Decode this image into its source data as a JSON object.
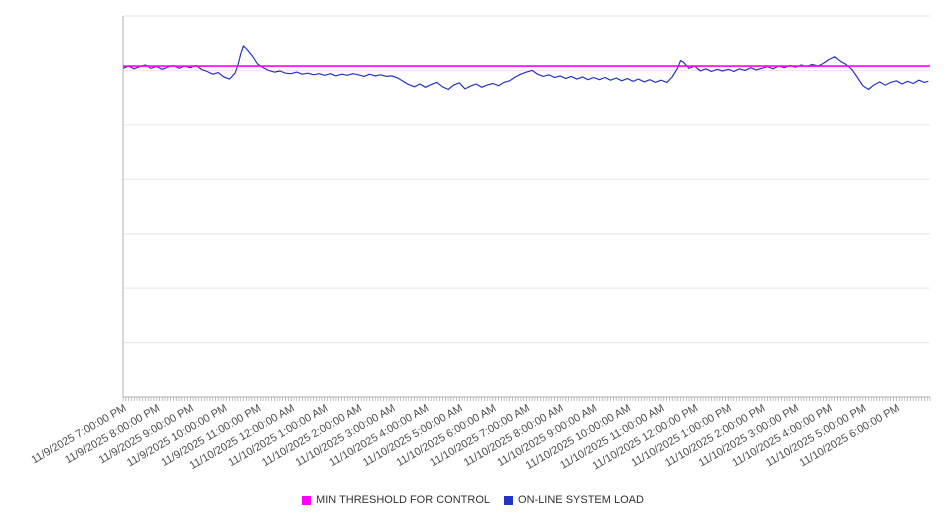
{
  "chart_data": {
    "type": "line",
    "title": "",
    "xlabel": "",
    "ylabel": "",
    "ylim": [
      0,
      7
    ],
    "x_range_hours": [
      0,
      24
    ],
    "grid": true,
    "y_gridlines": [
      1,
      2,
      3,
      4,
      5,
      6,
      7
    ],
    "legend_position": "bottom",
    "style": {
      "background": "#ffffff",
      "grid_color": "#e6e6e6",
      "axis_color": "#b0b0b0",
      "tick_color": "#999999",
      "label_color": "#4d4d4d"
    },
    "x_tick_labels": [
      "11/9/2025 7:00:00 PM",
      "11/9/2025 8:00:00 PM",
      "11/9/2025 9:00:00 PM",
      "11/9/2025 10:00:00 PM",
      "11/9/2025 11:00:00 PM",
      "11/10/2025 12:00:00 AM",
      "11/10/2025 1:00:00 AM",
      "11/10/2025 2:00:00 AM",
      "11/10/2025 3:00:00 AM",
      "11/10/2025 4:00:00 AM",
      "11/10/2025 5:00:00 AM",
      "11/10/2025 6:00:00 AM",
      "11/10/2025 7:00:00 AM",
      "11/10/2025 8:00:00 AM",
      "11/10/2025 9:00:00 AM",
      "11/10/2025 10:00:00 AM",
      "11/10/2025 11:00:00 AM",
      "11/10/2025 12:00:00 PM",
      "11/10/2025 1:00:00 PM",
      "11/10/2025 2:00:00 PM",
      "11/10/2025 3:00:00 PM",
      "11/10/2025 4:00:00 PM",
      "11/10/2025 5:00:00 PM",
      "11/10/2025 6:00:00 PM"
    ],
    "series": [
      {
        "name": "MIN THRESHOLD FOR CONTROL",
        "color": "#ff00ff",
        "kind": "constant-threshold",
        "value": 6.08
      },
      {
        "name": "ON-LINE SYSTEM LOAD",
        "color": "#2235c5",
        "kind": "line",
        "x_unit": "hours from 11/9/2025 7:00:00 PM",
        "points": [
          [
            0,
            6.04
          ],
          [
            0.17,
            6.08
          ],
          [
            0.33,
            6.03
          ],
          [
            0.5,
            6.07
          ],
          [
            0.67,
            6.1
          ],
          [
            0.83,
            6.04
          ],
          [
            1,
            6.07
          ],
          [
            1.17,
            6.02
          ],
          [
            1.33,
            6.06
          ],
          [
            1.5,
            6.09
          ],
          [
            1.67,
            6.04
          ],
          [
            1.83,
            6.08
          ],
          [
            2,
            6.05
          ],
          [
            2.17,
            6.09
          ],
          [
            2.33,
            6.02
          ],
          [
            2.5,
            5.98
          ],
          [
            2.67,
            5.93
          ],
          [
            2.83,
            5.96
          ],
          [
            3,
            5.88
          ],
          [
            3.17,
            5.84
          ],
          [
            3.33,
            5.95
          ],
          [
            3.42,
            6.1
          ],
          [
            3.5,
            6.3
          ],
          [
            3.58,
            6.45
          ],
          [
            3.67,
            6.4
          ],
          [
            3.83,
            6.28
          ],
          [
            4,
            6.12
          ],
          [
            4.17,
            6.05
          ],
          [
            4.33,
            6.0
          ],
          [
            4.5,
            5.97
          ],
          [
            4.67,
            5.99
          ],
          [
            4.83,
            5.95
          ],
          [
            5,
            5.94
          ],
          [
            5.17,
            5.97
          ],
          [
            5.33,
            5.93
          ],
          [
            5.5,
            5.95
          ],
          [
            5.67,
            5.92
          ],
          [
            5.83,
            5.94
          ],
          [
            6,
            5.91
          ],
          [
            6.17,
            5.94
          ],
          [
            6.33,
            5.9
          ],
          [
            6.5,
            5.93
          ],
          [
            6.67,
            5.91
          ],
          [
            6.83,
            5.94
          ],
          [
            7,
            5.92
          ],
          [
            7.17,
            5.89
          ],
          [
            7.33,
            5.93
          ],
          [
            7.5,
            5.9
          ],
          [
            7.67,
            5.92
          ],
          [
            7.83,
            5.89
          ],
          [
            8,
            5.9
          ],
          [
            8.17,
            5.86
          ],
          [
            8.33,
            5.8
          ],
          [
            8.5,
            5.74
          ],
          [
            8.67,
            5.7
          ],
          [
            8.83,
            5.75
          ],
          [
            9,
            5.69
          ],
          [
            9.17,
            5.74
          ],
          [
            9.33,
            5.78
          ],
          [
            9.5,
            5.7
          ],
          [
            9.67,
            5.65
          ],
          [
            9.83,
            5.73
          ],
          [
            10,
            5.77
          ],
          [
            10.17,
            5.66
          ],
          [
            10.33,
            5.71
          ],
          [
            10.5,
            5.75
          ],
          [
            10.67,
            5.69
          ],
          [
            10.83,
            5.73
          ],
          [
            11,
            5.76
          ],
          [
            11.17,
            5.72
          ],
          [
            11.33,
            5.78
          ],
          [
            11.5,
            5.81
          ],
          [
            11.67,
            5.88
          ],
          [
            11.83,
            5.93
          ],
          [
            12,
            5.97
          ],
          [
            12.17,
            6.0
          ],
          [
            12.33,
            5.93
          ],
          [
            12.5,
            5.89
          ],
          [
            12.67,
            5.92
          ],
          [
            12.83,
            5.87
          ],
          [
            13,
            5.9
          ],
          [
            13.17,
            5.85
          ],
          [
            13.33,
            5.89
          ],
          [
            13.5,
            5.84
          ],
          [
            13.67,
            5.88
          ],
          [
            13.83,
            5.83
          ],
          [
            14,
            5.87
          ],
          [
            14.17,
            5.83
          ],
          [
            14.33,
            5.87
          ],
          [
            14.5,
            5.82
          ],
          [
            14.67,
            5.86
          ],
          [
            14.83,
            5.81
          ],
          [
            15,
            5.85
          ],
          [
            15.17,
            5.8
          ],
          [
            15.33,
            5.84
          ],
          [
            15.5,
            5.79
          ],
          [
            15.67,
            5.83
          ],
          [
            15.83,
            5.78
          ],
          [
            16,
            5.82
          ],
          [
            16.17,
            5.78
          ],
          [
            16.33,
            5.88
          ],
          [
            16.5,
            6.05
          ],
          [
            16.58,
            6.18
          ],
          [
            16.67,
            6.15
          ],
          [
            16.83,
            6.04
          ],
          [
            17,
            6.08
          ],
          [
            17.17,
            5.99
          ],
          [
            17.33,
            6.03
          ],
          [
            17.5,
            5.98
          ],
          [
            17.67,
            6.02
          ],
          [
            17.83,
            5.99
          ],
          [
            18,
            6.02
          ],
          [
            18.17,
            5.98
          ],
          [
            18.33,
            6.03
          ],
          [
            18.5,
            6.0
          ],
          [
            18.67,
            6.05
          ],
          [
            18.83,
            6.01
          ],
          [
            19,
            6.04
          ],
          [
            19.17,
            6.07
          ],
          [
            19.33,
            6.03
          ],
          [
            19.5,
            6.08
          ],
          [
            19.67,
            6.05
          ],
          [
            19.83,
            6.09
          ],
          [
            20,
            6.06
          ],
          [
            20.17,
            6.1
          ],
          [
            20.33,
            6.07
          ],
          [
            20.5,
            6.11
          ],
          [
            20.67,
            6.08
          ],
          [
            20.83,
            6.13
          ],
          [
            21,
            6.2
          ],
          [
            21.17,
            6.25
          ],
          [
            21.33,
            6.17
          ],
          [
            21.5,
            6.11
          ],
          [
            21.67,
            6.02
          ],
          [
            21.83,
            5.88
          ],
          [
            22,
            5.72
          ],
          [
            22.17,
            5.65
          ],
          [
            22.33,
            5.73
          ],
          [
            22.5,
            5.79
          ],
          [
            22.67,
            5.73
          ],
          [
            22.83,
            5.78
          ],
          [
            23,
            5.81
          ],
          [
            23.17,
            5.75
          ],
          [
            23.33,
            5.8
          ],
          [
            23.5,
            5.76
          ],
          [
            23.67,
            5.82
          ],
          [
            23.83,
            5.78
          ],
          [
            23.95,
            5.8
          ]
        ]
      }
    ]
  }
}
